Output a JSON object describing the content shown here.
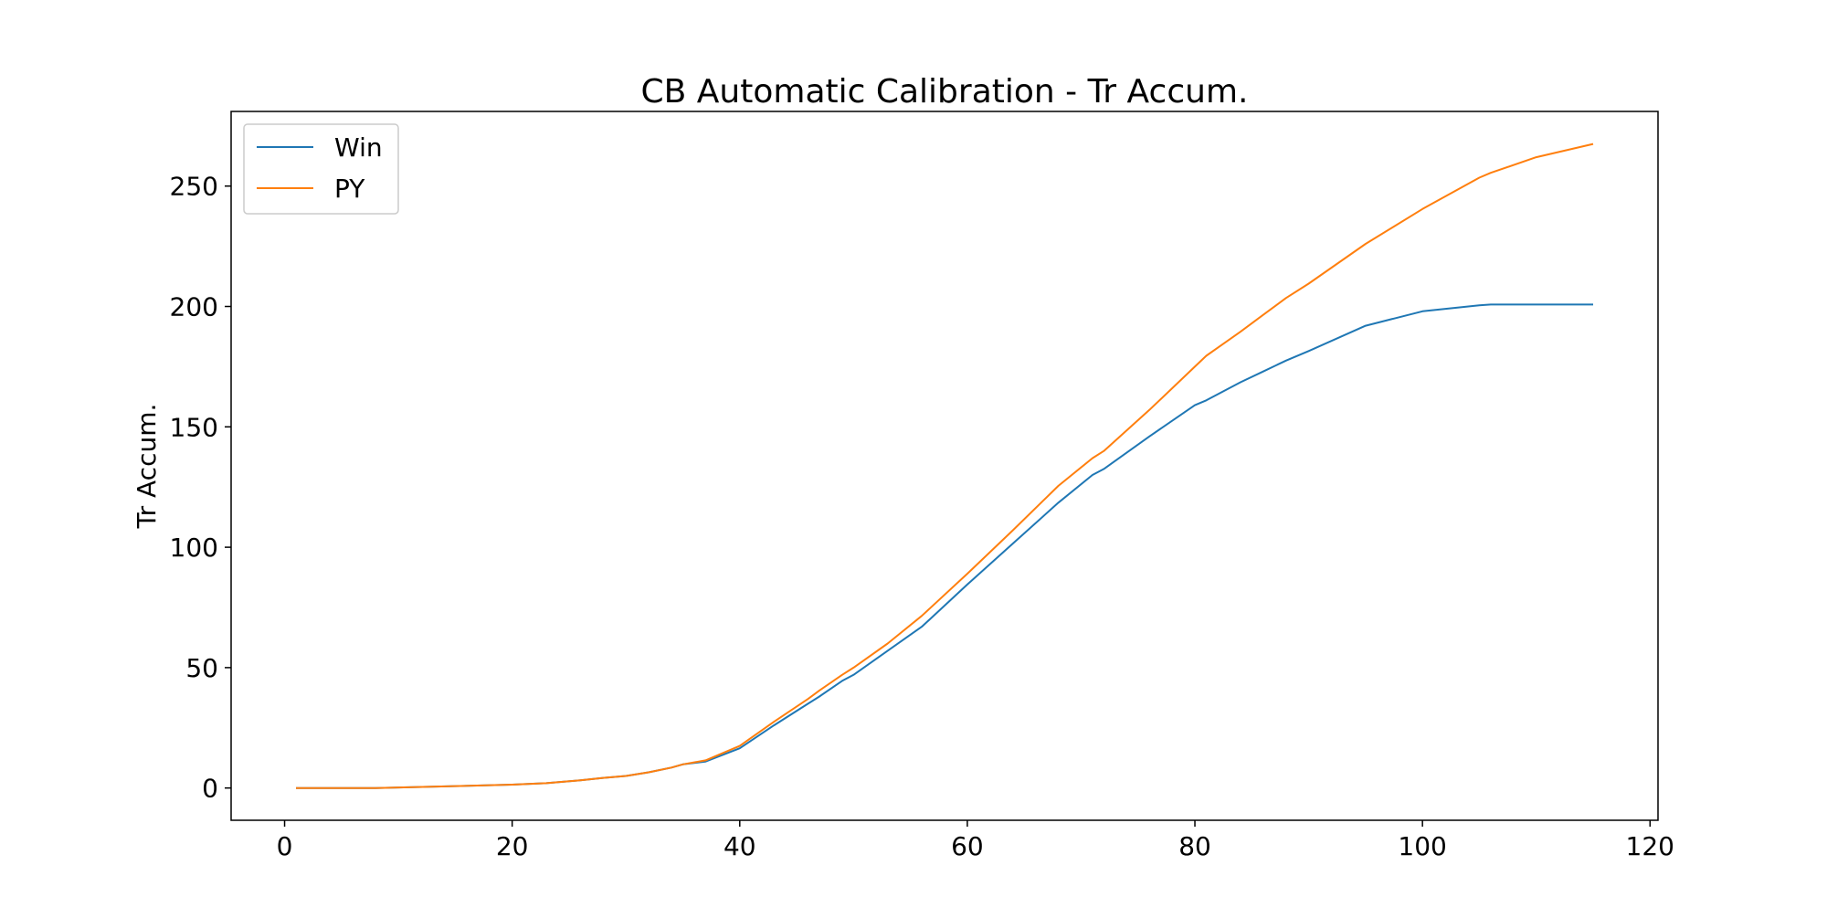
{
  "chart_data": {
    "type": "line",
    "title": "CB Automatic Calibration - Tr Accum.",
    "xlabel": "",
    "ylabel": "Tr Accum.",
    "xlim": [
      -4.7,
      120.7
    ],
    "ylim": [
      -13.4,
      281.0
    ],
    "xticks": [
      0,
      20,
      40,
      60,
      80,
      100,
      120
    ],
    "yticks": [
      0,
      50,
      100,
      150,
      200,
      250
    ],
    "grid": false,
    "legend_position": "upper left",
    "colors": {
      "Win": "#1f77b4",
      "PY": "#ff7f0e",
      "frame": "#000000",
      "legend_border": "#cccccc"
    },
    "x": [
      1,
      8,
      15,
      20,
      23,
      26,
      28,
      30,
      32,
      34,
      35,
      37,
      40,
      43,
      46,
      47,
      49,
      50,
      53,
      56,
      60,
      64,
      68,
      71,
      72,
      76,
      80,
      81,
      84,
      86,
      88,
      90,
      95,
      100,
      105,
      106,
      110,
      115
    ],
    "series": [
      {
        "name": "Win",
        "values": [
          0,
          0,
          0.8,
          1.4,
          2.0,
          3.2,
          4.2,
          5.0,
          6.5,
          8.5,
          9.8,
          11.0,
          16.5,
          26.0,
          35.0,
          38.0,
          44.5,
          47.0,
          57.0,
          67.0,
          84.5,
          101.5,
          118.5,
          130.0,
          132.5,
          146.0,
          159.0,
          161.0,
          168.5,
          173.0,
          177.5,
          181.5,
          192.0,
          198.0,
          200.5,
          200.8,
          200.8,
          200.8
        ]
      },
      {
        "name": "PY",
        "values": [
          0,
          0,
          0.8,
          1.4,
          2.0,
          3.2,
          4.2,
          5.0,
          6.5,
          8.5,
          9.8,
          11.5,
          17.5,
          27.5,
          37.0,
          40.5,
          47.0,
          50.0,
          60.0,
          71.5,
          89.0,
          107.0,
          125.5,
          137.0,
          140.0,
          157.0,
          175.0,
          179.5,
          189.5,
          196.5,
          203.5,
          209.5,
          226.0,
          240.5,
          253.5,
          255.5,
          262.0,
          267.5
        ]
      }
    ]
  }
}
